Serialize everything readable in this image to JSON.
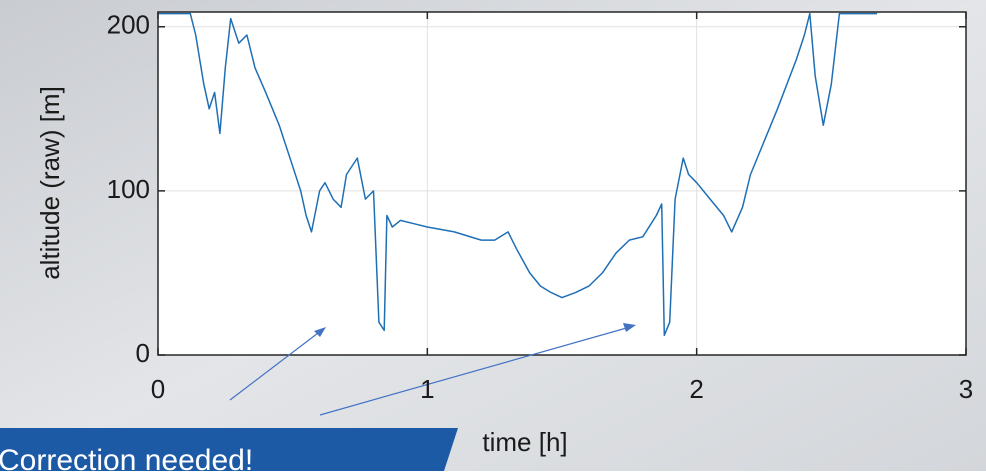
{
  "chart_data": {
    "type": "line",
    "x": [
      0,
      0.12,
      0.14,
      0.17,
      0.19,
      0.21,
      0.23,
      0.25,
      0.27,
      0.3,
      0.33,
      0.36,
      0.4,
      0.45,
      0.5,
      0.53,
      0.55,
      0.57,
      0.6,
      0.62,
      0.65,
      0.68,
      0.7,
      0.74,
      0.77,
      0.8,
      0.82,
      0.84,
      0.85,
      0.87,
      0.9,
      0.95,
      1.0,
      1.1,
      1.2,
      1.25,
      1.3,
      1.33,
      1.38,
      1.42,
      1.46,
      1.5,
      1.55,
      1.6,
      1.65,
      1.7,
      1.75,
      1.8,
      1.85,
      1.87,
      1.88,
      1.9,
      1.92,
      1.95,
      1.97,
      2.0,
      2.05,
      2.1,
      2.13,
      2.17,
      2.2,
      2.3,
      2.37,
      2.4,
      2.42,
      2.44,
      2.47,
      2.5,
      2.53,
      2.58,
      2.67
    ],
    "values": [
      208,
      208,
      195,
      165,
      150,
      160,
      135,
      175,
      205,
      190,
      195,
      175,
      160,
      140,
      115,
      100,
      85,
      75,
      100,
      105,
      95,
      90,
      110,
      120,
      95,
      100,
      20,
      15,
      85,
      78,
      82,
      80,
      78,
      75,
      70,
      70,
      75,
      65,
      50,
      42,
      38,
      35,
      38,
      42,
      50,
      62,
      70,
      72,
      85,
      92,
      12,
      20,
      95,
      120,
      110,
      105,
      95,
      85,
      75,
      90,
      110,
      150,
      180,
      195,
      208,
      170,
      140,
      165,
      208,
      208,
      208
    ],
    "color": "#1f6fb5",
    "xlim": [
      0,
      3
    ],
    "xticks": [
      0,
      1,
      2,
      3
    ],
    "ylim": [
      0,
      209
    ],
    "yticks": [
      0,
      100,
      200
    ],
    "grid": true,
    "xlabel": "time [h]",
    "ylabel": "altitude (raw) [m]",
    "annotation": "Correction needed!"
  }
}
